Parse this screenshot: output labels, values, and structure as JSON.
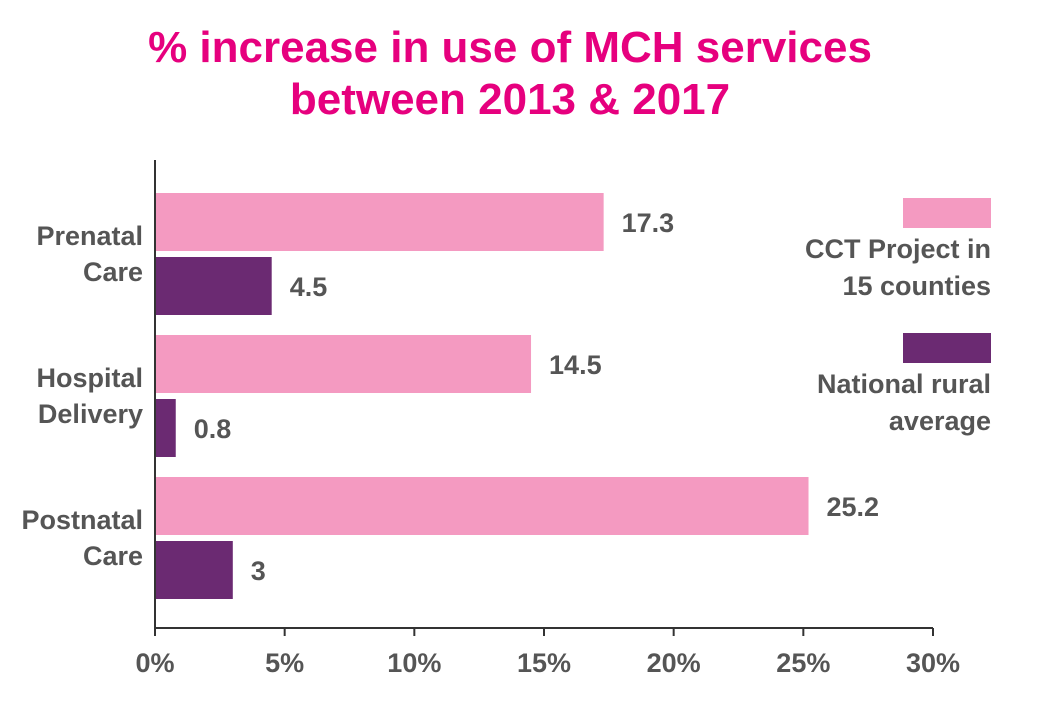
{
  "chart_data": {
    "type": "bar",
    "orientation": "horizontal",
    "title_lines": [
      "% increase in use of MCH services",
      "between 2013 & 2017"
    ],
    "categories": [
      {
        "lines": [
          "Prenatal",
          "Care"
        ]
      },
      {
        "lines": [
          "Hospital",
          "Delivery"
        ]
      },
      {
        "lines": [
          "Postnatal",
          "Care"
        ]
      }
    ],
    "series": [
      {
        "name_lines": [
          "CCT Project in",
          "15 counties"
        ],
        "color": "#f49ac1",
        "values": [
          17.3,
          14.5,
          25.2
        ],
        "value_labels": [
          "17.3",
          "14.5",
          "25.2"
        ]
      },
      {
        "name_lines": [
          "National rural",
          "average"
        ],
        "color": "#6b2a72",
        "values": [
          4.5,
          0.8,
          3
        ],
        "value_labels": [
          "4.5",
          "0.8",
          "3"
        ]
      }
    ],
    "xlim": [
      0,
      30
    ],
    "x_ticks": [
      0,
      5,
      10,
      15,
      20,
      25,
      30
    ],
    "x_tick_labels": [
      "0%",
      "5%",
      "10%",
      "15%",
      "20%",
      "25%",
      "30%"
    ],
    "grid": false,
    "legend_position": "right"
  }
}
